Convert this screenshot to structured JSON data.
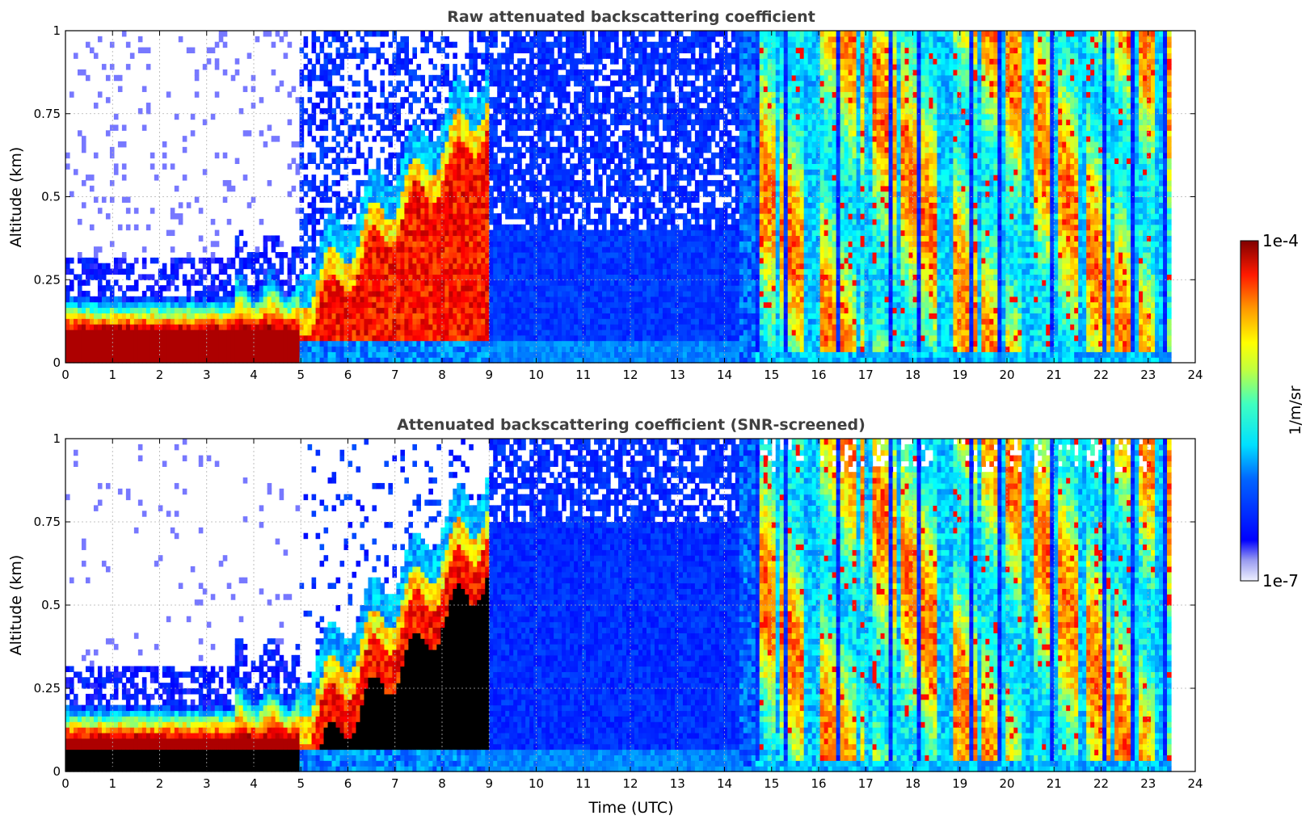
{
  "chart_data": [
    {
      "type": "heatmap",
      "title": "Raw attenuated backscattering coefficient",
      "ylabel": "Altitude (km)",
      "xlabel": "",
      "xlim": [
        0,
        24
      ],
      "ylim": [
        0,
        1
      ],
      "x_ticks": [
        "0",
        "1",
        "2",
        "3",
        "4",
        "5",
        "6",
        "7",
        "8",
        "9",
        "10",
        "11",
        "12",
        "13",
        "14",
        "15",
        "16",
        "17",
        "18",
        "19",
        "20",
        "21",
        "22",
        "23",
        "24"
      ],
      "y_ticks": [
        "0",
        "0.25",
        "0.5",
        "0.75",
        "1"
      ],
      "x_tick_values": [
        0,
        1,
        2,
        3,
        4,
        5,
        6,
        7,
        8,
        9,
        10,
        11,
        12,
        13,
        14,
        15,
        16,
        17,
        18,
        19,
        20,
        21,
        22,
        23,
        24
      ],
      "y_tick_values": [
        0,
        0.25,
        0.5,
        0.75,
        1
      ],
      "grid": true,
      "data_end_hour": 23.5,
      "colorscale": "jet",
      "log_scale": true,
      "variant": "raw"
    },
    {
      "type": "heatmap",
      "title": "Attenuated backscattering coefficient (SNR-screened)",
      "ylabel": "Altitude (km)",
      "xlabel": "Time (UTC)",
      "xlim": [
        0,
        24
      ],
      "ylim": [
        0,
        1
      ],
      "x_ticks": [
        "0",
        "1",
        "2",
        "3",
        "4",
        "5",
        "6",
        "7",
        "8",
        "9",
        "10",
        "11",
        "12",
        "13",
        "14",
        "15",
        "16",
        "17",
        "18",
        "19",
        "20",
        "21",
        "22",
        "23",
        "24"
      ],
      "y_ticks": [
        "0",
        "0.25",
        "0.5",
        "0.75",
        "1"
      ],
      "x_tick_values": [
        0,
        1,
        2,
        3,
        4,
        5,
        6,
        7,
        8,
        9,
        10,
        11,
        12,
        13,
        14,
        15,
        16,
        17,
        18,
        19,
        20,
        21,
        22,
        23,
        24
      ],
      "y_tick_values": [
        0,
        0.25,
        0.5,
        0.75,
        1
      ],
      "grid": true,
      "data_end_hour": 23.5,
      "colorscale": "jet",
      "log_scale": true,
      "variant": "screened"
    }
  ],
  "colorbar": {
    "label": "1/m/sr",
    "max_label": "1e-4",
    "min_label": "1e-7",
    "colors": [
      "#800000",
      "#ff0000",
      "#ffff00",
      "#00ffff",
      "#0000ff",
      "#eeeeff"
    ]
  }
}
